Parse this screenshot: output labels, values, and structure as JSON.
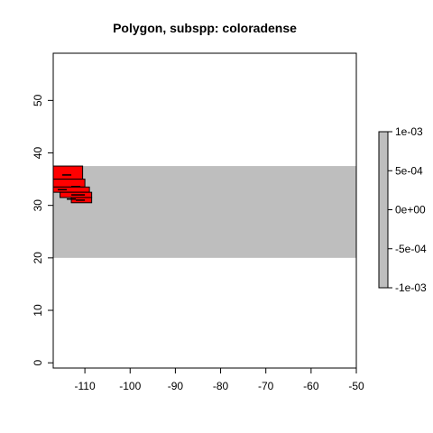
{
  "title": "Polygon, subspp: coloradense",
  "chart_data": {
    "type": "heatmap",
    "title": "Polygon, subspp: coloradense",
    "xlabel": "",
    "ylabel": "",
    "xlim": [
      -117,
      -50
    ],
    "ylim": [
      -1,
      59
    ],
    "x_ticks": [
      -110,
      -100,
      -90,
      -80,
      -70,
      -60,
      -50
    ],
    "x_tick_labels": [
      "-110",
      "-100",
      "-90",
      "-80",
      "-70",
      "-60",
      "-50"
    ],
    "y_ticks": [
      0,
      10,
      20,
      30,
      40,
      50
    ],
    "y_tick_labels": [
      "0",
      "10",
      "20",
      "30",
      "40",
      "50"
    ],
    "raster_band": {
      "x": [
        -117,
        -50
      ],
      "y": [
        20,
        37.5
      ],
      "color": "#bebebe"
    },
    "polygon_color": "#ff0000",
    "polygon_cells": [
      [
        -117,
        -110.5,
        35,
        37.5
      ],
      [
        -117,
        -110,
        33.5,
        35
      ],
      [
        -117,
        -109,
        32.5,
        33.5
      ],
      [
        -115.5,
        -108.5,
        31.5,
        32.5
      ],
      [
        -113,
        -108.5,
        30.5,
        31.5
      ]
    ],
    "polygon_inner_lines": [
      [
        -115,
        -113,
        35.8
      ],
      [
        -113,
        -111,
        33.6
      ],
      [
        -116,
        -114,
        33.0
      ],
      [
        -113,
        -110,
        32.0
      ],
      [
        -114,
        -112,
        31.2
      ],
      [
        -112,
        -110,
        31.0
      ]
    ],
    "legend": {
      "position": "right",
      "color": "#bebebe",
      "labels": [
        "1e-03",
        "5e-04",
        "0e+00",
        "-5e-04",
        "-1e-03"
      ]
    },
    "grid": false
  }
}
